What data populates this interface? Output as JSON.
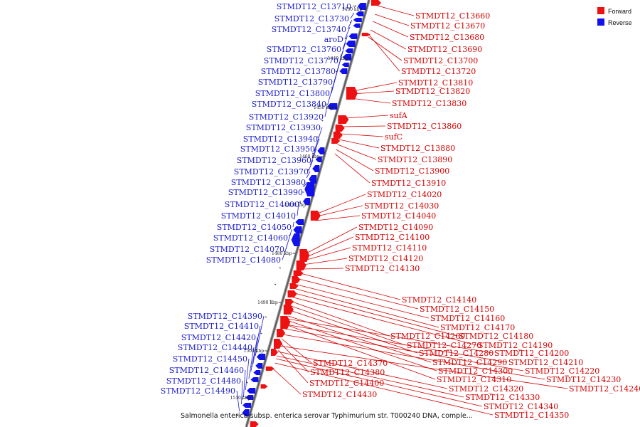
{
  "legend": [
    {
      "label": "Forward",
      "color": "#ee1111"
    },
    {
      "label": "Reverse",
      "color": "#1111ee"
    }
  ],
  "caption": "Salmonella enterica subsp. enterica serovar Typhimurium str. T000240 DNA, comple...",
  "ticks": [
    "1430 kbp",
    "1440 kbp",
    "1450 kbp",
    "1460 kbp",
    "1470 kbp",
    "1480 kbp",
    "1490 kbp",
    "1500 kbp",
    "1510 kbp"
  ],
  "forward_genes": [
    "STMDT12_C13660",
    "STMDT12_C13670",
    "STMDT12_C13680",
    "STMDT12_C13690",
    "STMDT12_C13700",
    "STMDT12_C13720",
    "STMDT12_C13810",
    "STMDT12_C13820",
    "STMDT12_C13830",
    "sufA",
    "STMDT12_C13860",
    "sufC",
    "STMDT12_C13880",
    "STMDT12_C13890",
    "STMDT12_C13900",
    "STMDT12_C13910",
    "STMDT12_C14020",
    "STMDT12_C14030",
    "STMDT12_C14040",
    "STMDT12_C14090",
    "STMDT12_C14100",
    "STMDT12_C14110",
    "STMDT12_C14120",
    "STMDT12_C14130",
    "STMDT12_C14140",
    "STMDT12_C14150",
    "STMDT12_C14160",
    "STMDT12_C14170",
    "STMDT12_C14180",
    "STMDT12_C14260",
    "STMDT12_C14190",
    "STMDT12_C14270",
    "STMDT12_C14280",
    "STMDT12_C14200",
    "STMDT12_C14210",
    "STMDT12_C14290",
    "STMDT12_C14370",
    "STMDT12_C14220",
    "STMDT12_C14300",
    "STMDT12_C14380",
    "STMDT12_C14230",
    "STMDT12_C14310",
    "STMDT12_C14400",
    "STMDT12_C14240",
    "STMDT12_C14320",
    "STMDT12_C14430",
    "STMDT12_C14330",
    "STMDT12_C14340",
    "STMDT12_C14350"
  ],
  "reverse_genes": [
    "STMDT12_C13710",
    "STMDT12_C13730",
    "STMDT12_C13740",
    "aroD",
    "STMDT12_C13760",
    "STMDT12_C13770",
    "STMDT12_C13780",
    "STMDT12_C13790",
    "STMDT12_C13800",
    "STMDT12_C13840",
    "STMDT12_C13920",
    "STMDT12_C13930",
    "STMDT12_C13940",
    "STMDT12_C13950",
    "STMDT12_C13960",
    "STMDT12_C13970",
    "STMDT12_C13980",
    "STMDT12_C13990",
    "STMDT12_C14000",
    "STMDT12_C14010",
    "STMDT12_C14050",
    "STMDT12_C14060",
    "STMDT12_C14070",
    "STMDT12_C14080",
    "STMDT12_C14390",
    "STMDT12_C14410",
    "STMDT12_C14420",
    "STMDT12_C14440",
    "STMDT12_C14450",
    "STMDT12_C14460",
    "STMDT12_C14480",
    "STMDT12_C14490"
  ]
}
